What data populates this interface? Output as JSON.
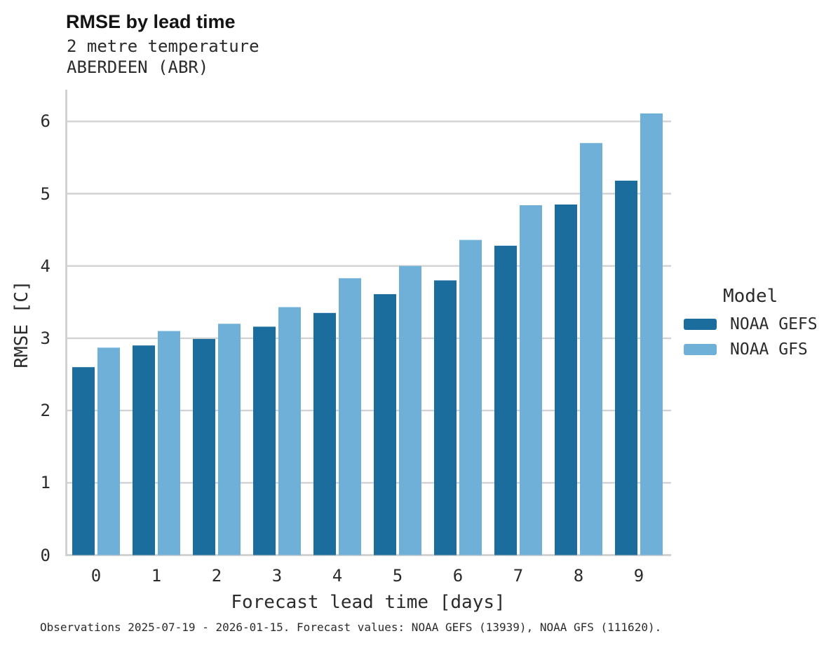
{
  "chart_data": {
    "type": "bar",
    "title": "RMSE by lead time",
    "subtitle": [
      "2 metre temperature",
      "ABERDEEN (ABR)"
    ],
    "xlabel": "Forecast lead time [days]",
    "ylabel": "RMSE [C]",
    "categories": [
      "0",
      "1",
      "2",
      "3",
      "4",
      "5",
      "6",
      "7",
      "8",
      "9"
    ],
    "series": [
      {
        "name": "NOAA GEFS",
        "color": "#1B6D9E",
        "values": [
          2.6,
          2.9,
          2.99,
          3.16,
          3.35,
          3.61,
          3.8,
          4.28,
          4.85,
          5.18
        ]
      },
      {
        "name": "NOAA GFS",
        "color": "#6FB0D9",
        "values": [
          2.87,
          3.1,
          3.2,
          3.43,
          3.83,
          4.0,
          4.36,
          4.84,
          5.7,
          6.11
        ]
      }
    ],
    "ylim": [
      0,
      6.45
    ],
    "yticks": [
      0,
      1,
      2,
      3,
      4,
      5,
      6
    ],
    "grid": "horizontal",
    "grid_color": "#d2d2d2",
    "axis_color": "#d2d2d2",
    "legend_title": "Model",
    "legend_position": "right"
  },
  "caption": {
    "text": "Observations 2025-07-19 - 2026-01-15. Forecast values: NOAA GEFS (13939), NOAA GFS (111620)."
  }
}
